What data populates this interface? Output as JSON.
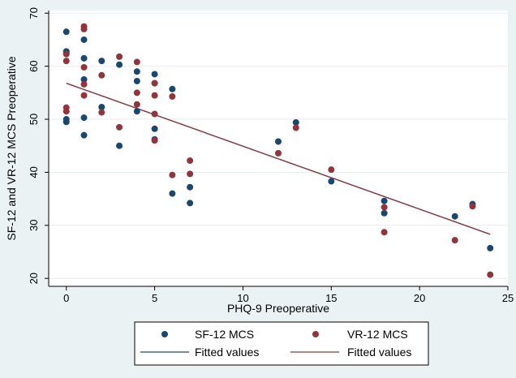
{
  "chart_data": {
    "type": "scatter",
    "xlabel": "PHQ-9 Preoperative",
    "ylabel": "SF-12 and VR-12 MCS Preoperative",
    "xlim": [
      -1,
      25
    ],
    "ylim": [
      18.5,
      70.5
    ],
    "xticks": [
      0,
      5,
      10,
      15,
      20,
      25
    ],
    "yticks": [
      20,
      30,
      40,
      50,
      60,
      70
    ],
    "grid": "horizontal",
    "legend_position": "bottom",
    "series": [
      {
        "name": "SF-12 MCS",
        "kind": "scatter",
        "color": "#1a476f",
        "points": [
          [
            0,
            66.5
          ],
          [
            0,
            62.8
          ],
          [
            0,
            62.5
          ],
          [
            0,
            50
          ],
          [
            0,
            49.5
          ],
          [
            1,
            65
          ],
          [
            1,
            61.5
          ],
          [
            1,
            57.5
          ],
          [
            1,
            50.3
          ],
          [
            1,
            47
          ],
          [
            2,
            61
          ],
          [
            2,
            52.3
          ],
          [
            3,
            60.3
          ],
          [
            3,
            45
          ],
          [
            4,
            59
          ],
          [
            4,
            57.2
          ],
          [
            4,
            51.5
          ],
          [
            5,
            58.5
          ],
          [
            5,
            56.8
          ],
          [
            5,
            48.2
          ],
          [
            5,
            46.2
          ],
          [
            6,
            55.7
          ],
          [
            6,
            36
          ],
          [
            7,
            37.2
          ],
          [
            7,
            34.2
          ],
          [
            12,
            45.8
          ],
          [
            13,
            49.4
          ],
          [
            15,
            38.3
          ],
          [
            18,
            34.6
          ],
          [
            18,
            32.3
          ],
          [
            22,
            31.7
          ],
          [
            23,
            34
          ],
          [
            24,
            25.7
          ]
        ]
      },
      {
        "name": "VR-12 MCS",
        "kind": "scatter",
        "color": "#90353b",
        "points": [
          [
            0,
            62.3
          ],
          [
            0,
            61
          ],
          [
            0,
            52.2
          ],
          [
            0,
            51.5
          ],
          [
            1,
            67.5
          ],
          [
            1,
            67
          ],
          [
            1,
            59.8
          ],
          [
            1,
            56.6
          ],
          [
            1,
            54.5
          ],
          [
            2,
            58.3
          ],
          [
            2,
            51.3
          ],
          [
            3,
            61.8
          ],
          [
            3,
            48.5
          ],
          [
            4,
            60.8
          ],
          [
            4,
            55
          ],
          [
            4,
            52.8
          ],
          [
            5,
            56.8
          ],
          [
            5,
            54.5
          ],
          [
            5,
            51
          ],
          [
            5,
            46
          ],
          [
            6,
            54.3
          ],
          [
            6,
            39.5
          ],
          [
            7,
            42.2
          ],
          [
            7,
            39.7
          ],
          [
            12,
            43.6
          ],
          [
            13,
            48.4
          ],
          [
            15,
            40.5
          ],
          [
            18,
            33.4
          ],
          [
            18,
            28.7
          ],
          [
            22,
            27.2
          ],
          [
            23,
            33.6
          ],
          [
            24,
            20.7
          ]
        ]
      },
      {
        "name": "Fitted values",
        "kind": "line",
        "color": "#1a476f",
        "x": [
          0,
          24
        ],
        "y": [
          56.8,
          28.3
        ]
      },
      {
        "name": "Fitted values",
        "kind": "line",
        "color": "#90353b",
        "x": [
          0,
          24
        ],
        "y": [
          56.8,
          28.3
        ]
      }
    ]
  }
}
